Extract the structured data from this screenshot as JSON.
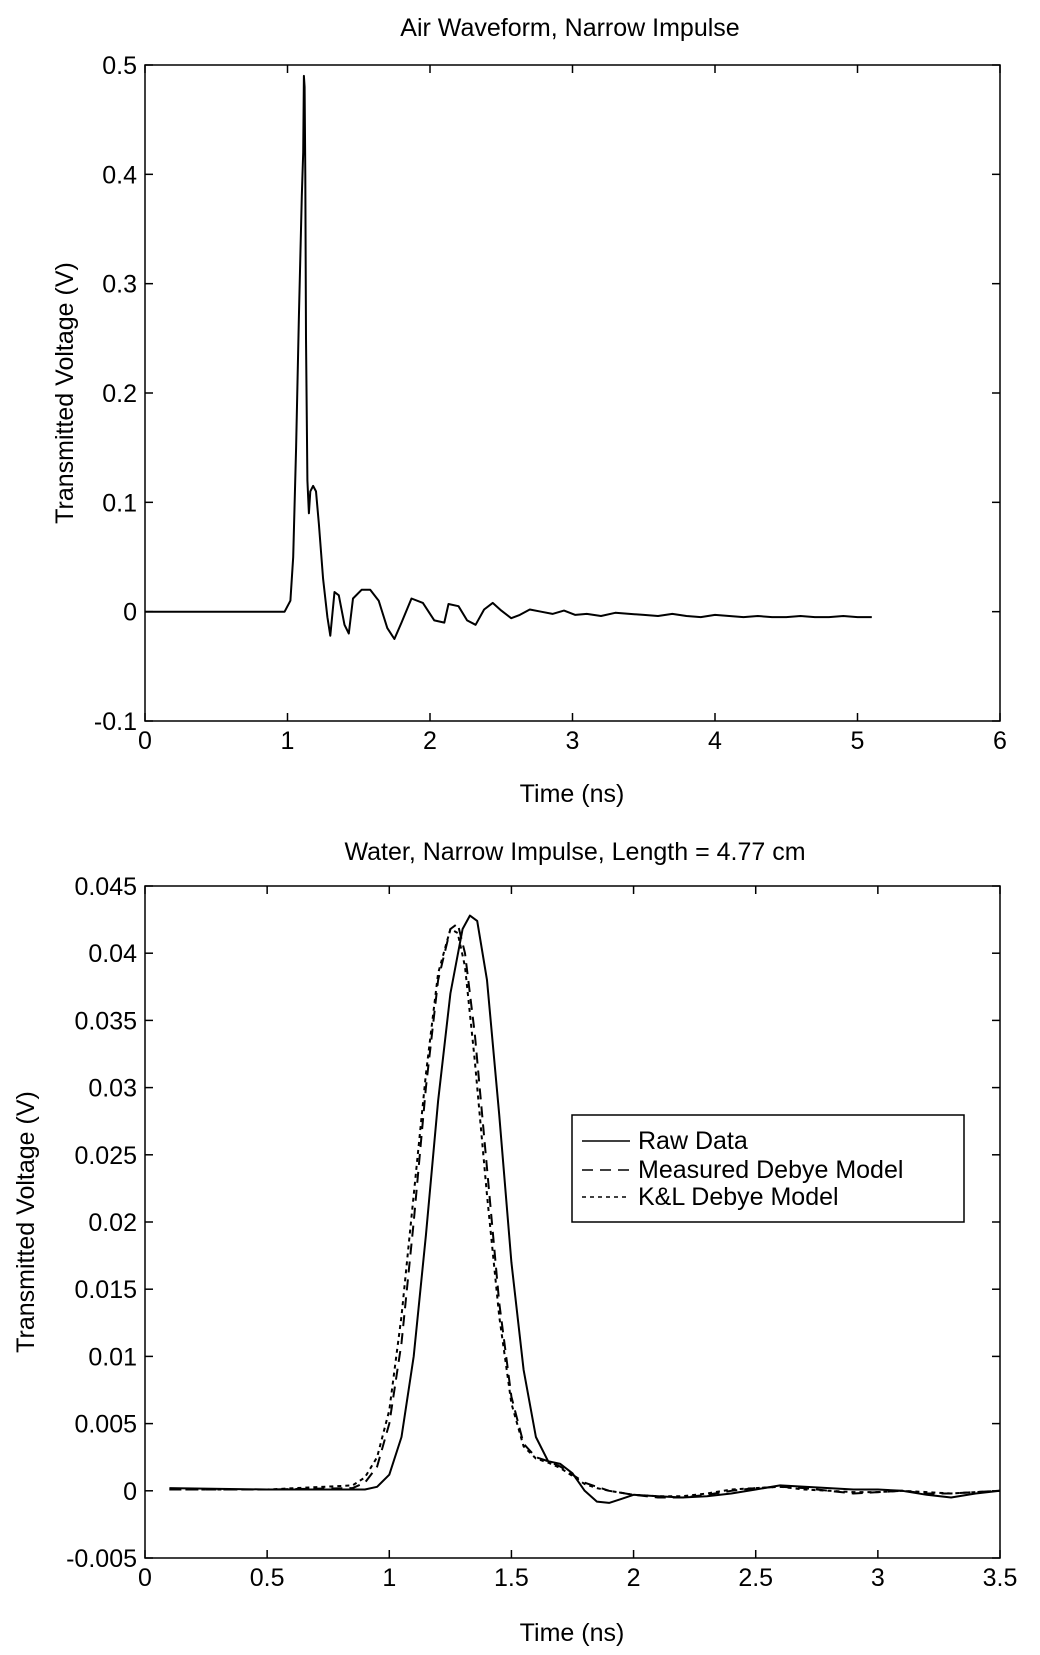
{
  "chart_data": [
    {
      "type": "line",
      "title": "Air Waveform, Narrow Impulse",
      "xlabel": "Time (ns)",
      "ylabel": "Transmitted Voltage (V)",
      "xlim": [
        0,
        6
      ],
      "ylim": [
        -0.1,
        0.5
      ],
      "xticks": [
        0,
        1,
        2,
        3,
        4,
        5,
        6
      ],
      "xtick_labels": [
        "0",
        "1",
        "2",
        "3",
        "4",
        "5",
        "6"
      ],
      "yticks": [
        -0.1,
        0,
        0.1,
        0.2,
        0.3,
        0.4,
        0.5
      ],
      "ytick_labels": [
        "-0.1",
        "0",
        "0.1",
        "0.2",
        "0.3",
        "0.4",
        "0.5"
      ],
      "grid": false,
      "series": [
        {
          "style": "solid",
          "x": [
            0,
            0.5,
            0.98,
            1.02,
            1.04,
            1.06,
            1.08,
            1.1,
            1.11,
            1.115,
            1.12,
            1.125,
            1.13,
            1.14,
            1.15,
            1.16,
            1.18,
            1.2,
            1.22,
            1.25,
            1.28,
            1.3,
            1.33,
            1.36,
            1.4,
            1.43,
            1.46,
            1.52,
            1.58,
            1.64,
            1.7,
            1.75,
            1.8,
            1.87,
            1.95,
            2.03,
            2.1,
            2.13,
            2.2,
            2.26,
            2.32,
            2.38,
            2.44,
            2.5,
            2.57,
            2.63,
            2.7,
            2.78,
            2.86,
            2.94,
            3.02,
            3.1,
            3.2,
            3.3,
            3.4,
            3.5,
            3.6,
            3.7,
            3.8,
            3.9,
            4.0,
            4.1,
            4.2,
            4.3,
            4.4,
            4.5,
            4.6,
            4.7,
            4.8,
            4.9,
            5.0,
            5.1
          ],
          "y": [
            0,
            0,
            0,
            0.01,
            0.05,
            0.15,
            0.27,
            0.38,
            0.42,
            0.49,
            0.48,
            0.4,
            0.25,
            0.12,
            0.09,
            0.11,
            0.115,
            0.11,
            0.08,
            0.03,
            -0.005,
            -0.022,
            0.018,
            0.015,
            -0.012,
            -0.02,
            0.012,
            0.02,
            0.02,
            0.01,
            -0.015,
            -0.025,
            -0.01,
            0.012,
            0.008,
            -0.008,
            -0.01,
            0.007,
            0.005,
            -0.008,
            -0.012,
            0.002,
            0.008,
            0.001,
            -0.006,
            -0.003,
            0.002,
            0.0,
            -0.002,
            0.001,
            -0.003,
            -0.002,
            -0.004,
            -0.001,
            -0.002,
            -0.003,
            -0.004,
            -0.002,
            -0.004,
            -0.005,
            -0.003,
            -0.004,
            -0.005,
            -0.004,
            -0.005,
            -0.005,
            -0.004,
            -0.005,
            -0.005,
            -0.004,
            -0.005,
            -0.005
          ]
        }
      ]
    },
    {
      "type": "line",
      "title": "Water, Narrow Impulse, Length = 4.77 cm",
      "xlabel": "Time (ns)",
      "ylabel": "Transmitted Voltage (V)",
      "xlim": [
        0,
        3.5
      ],
      "ylim": [
        -0.005,
        0.045
      ],
      "xticks": [
        0,
        0.5,
        1,
        1.5,
        2,
        2.5,
        3,
        3.5
      ],
      "xtick_labels": [
        "0",
        "0.5",
        "1",
        "1.5",
        "2",
        "2.5",
        "3",
        "3.5"
      ],
      "yticks": [
        -0.005,
        0,
        0.005,
        0.01,
        0.015,
        0.02,
        0.025,
        0.03,
        0.035,
        0.04,
        0.045
      ],
      "ytick_labels": [
        "-0.005",
        "0",
        "0.005",
        "0.01",
        "0.015",
        "0.02",
        "0.025",
        "0.03",
        "0.035",
        "0.04",
        "0.045"
      ],
      "grid": false,
      "legend_position": "right",
      "series": [
        {
          "name": "Raw Data",
          "style": "solid",
          "x": [
            0.1,
            0.5,
            0.9,
            0.95,
            1.0,
            1.05,
            1.1,
            1.15,
            1.2,
            1.25,
            1.3,
            1.33,
            1.36,
            1.4,
            1.45,
            1.5,
            1.55,
            1.6,
            1.65,
            1.7,
            1.75,
            1.8,
            1.85,
            1.9,
            1.95,
            2.0,
            2.1,
            2.2,
            2.3,
            2.4,
            2.5,
            2.6,
            2.7,
            2.8,
            2.9,
            3.0,
            3.1,
            3.2,
            3.3,
            3.4,
            3.5
          ],
          "y": [
            0.0002,
            0.0001,
            0.0001,
            0.0003,
            0.0012,
            0.004,
            0.01,
            0.019,
            0.029,
            0.037,
            0.0418,
            0.0428,
            0.0424,
            0.038,
            0.028,
            0.017,
            0.009,
            0.004,
            0.0022,
            0.002,
            0.0013,
            0.0,
            -0.0008,
            -0.0009,
            -0.0006,
            -0.0003,
            -0.0004,
            -0.0005,
            -0.0004,
            -0.0002,
            0.0001,
            0.0004,
            0.0003,
            0.0002,
            0.0001,
            0.0001,
            0.0,
            -0.0003,
            -0.0005,
            -0.0002,
            0.0
          ]
        },
        {
          "name": "Measured Debye Model",
          "style": "dashed",
          "x": [
            0.1,
            0.5,
            0.85,
            0.9,
            0.95,
            1.0,
            1.05,
            1.1,
            1.15,
            1.2,
            1.25,
            1.28,
            1.31,
            1.35,
            1.4,
            1.45,
            1.5,
            1.55,
            1.6,
            1.65,
            1.7,
            1.75,
            1.8,
            1.85,
            1.9,
            2.0,
            2.1,
            2.2,
            2.3,
            2.4,
            2.5,
            2.6,
            2.7,
            2.8,
            2.9,
            3.0,
            3.1,
            3.2,
            3.3,
            3.4,
            3.5
          ],
          "y": [
            0.0001,
            0.0001,
            0.0002,
            0.0006,
            0.0018,
            0.005,
            0.011,
            0.02,
            0.03,
            0.038,
            0.0418,
            0.0422,
            0.04,
            0.034,
            0.024,
            0.014,
            0.007,
            0.0035,
            0.0025,
            0.0022,
            0.0018,
            0.0012,
            0.0006,
            0.0003,
            0.0,
            -0.0003,
            -0.0005,
            -0.0005,
            -0.0003,
            0.0,
            0.0002,
            0.0003,
            0.0002,
            0.0,
            -0.0002,
            -0.0001,
            0.0,
            -0.0002,
            -0.0002,
            -0.0001,
            0.0
          ]
        },
        {
          "name": "K&L Debye Model",
          "style": "dotted",
          "x": [
            0.1,
            0.5,
            0.85,
            0.9,
            0.95,
            1.0,
            1.05,
            1.1,
            1.15,
            1.2,
            1.25,
            1.28,
            1.31,
            1.35,
            1.4,
            1.45,
            1.5,
            1.55,
            1.6,
            1.65,
            1.7,
            1.75,
            1.8,
            1.85,
            1.9,
            2.0,
            2.1,
            2.2,
            2.3,
            2.4,
            2.5,
            2.6,
            2.7,
            2.8,
            2.9,
            3.0,
            3.1,
            3.2,
            3.3,
            3.4,
            3.5
          ],
          "y": [
            0.0001,
            0.0001,
            0.0004,
            0.001,
            0.0025,
            0.006,
            0.013,
            0.022,
            0.031,
            0.0385,
            0.0418,
            0.0415,
            0.039,
            0.032,
            0.022,
            0.013,
            0.0065,
            0.0033,
            0.0024,
            0.0021,
            0.0017,
            0.0011,
            0.0005,
            0.0002,
            0.0,
            -0.0003,
            -0.0004,
            -0.0004,
            -0.0002,
            0.0001,
            0.0002,
            0.0003,
            0.0001,
            0.0,
            -0.0001,
            -0.0001,
            0.0,
            -0.0001,
            -0.0002,
            -0.0001,
            0.0
          ]
        }
      ]
    }
  ]
}
